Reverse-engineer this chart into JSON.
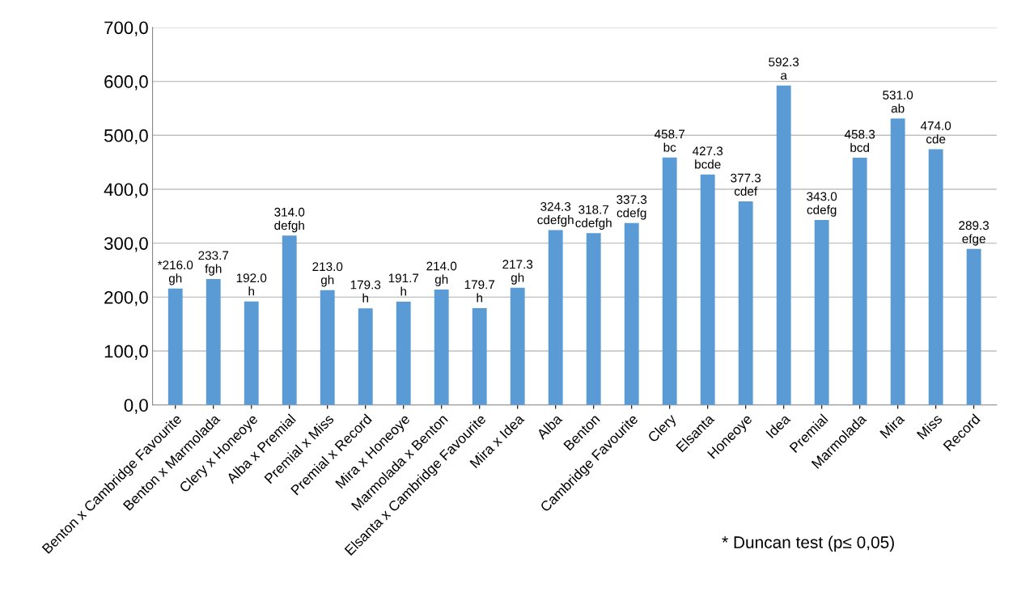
{
  "chart_data": {
    "type": "bar",
    "categories": [
      "Benton x Cambridge Favourite",
      "Benton x Marmolada",
      "Clery x Honeoye",
      "Alba x Premial",
      "Premial x Miss",
      "Premial x Record",
      "Mira x Honeoye",
      "Marmolada x Benton",
      "Elsanta x Cambridge Favourite",
      "Mira x Idea",
      "Alba",
      "Benton",
      "Cambridge Favourite",
      "Clery",
      "Elsanta",
      "Honeoye",
      "Idea",
      "Premial",
      "Marmolada",
      "Mira",
      "Miss",
      "Record"
    ],
    "values": [
      216.0,
      233.7,
      192.0,
      314.0,
      213.0,
      179.3,
      191.7,
      214.0,
      179.7,
      217.3,
      324.3,
      318.7,
      337.3,
      458.7,
      427.3,
      377.3,
      592.3,
      343.0,
      458.3,
      531.0,
      474.0,
      289.3
    ],
    "value_labels": [
      "*216.0 gh",
      "233.7 fgh",
      "192.0 h",
      "314.0 defgh",
      "213.0 gh",
      "179.3 h",
      "191.7 h",
      "214.0 gh",
      "179.7 h",
      "217.3 gh",
      "324.3 cdefgh",
      "318.7 cdefgh",
      "337.3 cdefg",
      "458.7 bc",
      "427.3 bcde",
      "377.3 cdef",
      "592.3 a",
      "343.0 cdefg",
      "458.3 bcd",
      "531.0 ab",
      "474.0 cde",
      "289.3 efge"
    ],
    "color": "#5b9bd5",
    "ylim": [
      0,
      700
    ],
    "yticks": [
      {
        "value": 0,
        "label": "0,0"
      },
      {
        "value": 100,
        "label": "100,0"
      },
      {
        "value": 200,
        "label": "200,0"
      },
      {
        "value": 300,
        "label": "300,0"
      },
      {
        "value": 400,
        "label": "400,0"
      },
      {
        "value": 500,
        "label": "500,0"
      },
      {
        "value": 600,
        "label": "600,0"
      },
      {
        "value": 700,
        "label": "700,0"
      }
    ],
    "grid": "y",
    "annotations": [
      "* Duncan test (p≤ 0,05)"
    ]
  }
}
